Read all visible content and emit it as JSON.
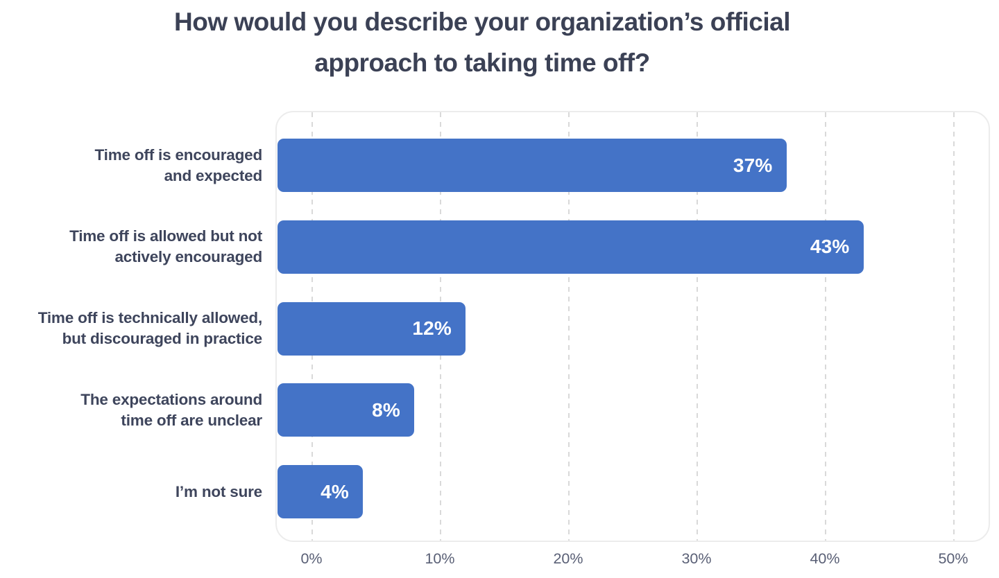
{
  "title": {
    "full": "How would you describe your organization’s official approach to taking time off?",
    "lines": [
      "How would you describe your organization’s official",
      "approach to taking time off?"
    ]
  },
  "chart_data": {
    "type": "bar",
    "orientation": "horizontal",
    "title": "How would you describe your organization’s official approach to taking time off?",
    "categories": [
      "Time off is encouraged and expected",
      "Time off is allowed but not actively encouraged",
      "Time off is technically allowed, but discouraged in practice",
      "The expectations around time off are unclear",
      "I’m not sure"
    ],
    "category_lines": [
      [
        "Time off is encouraged",
        "and expected"
      ],
      [
        "Time off is allowed but not",
        "actively encouraged"
      ],
      [
        "Time off is technically allowed,",
        "but discouraged in practice"
      ],
      [
        "The expectations around",
        "time off are unclear"
      ],
      [
        "I’m not sure"
      ]
    ],
    "values": [
      37,
      43,
      12,
      8,
      4
    ],
    "value_labels": [
      "37%",
      "43%",
      "12%",
      "8%",
      "4%"
    ],
    "x_tick_labels": [
      "0%",
      "10%",
      "20%",
      "30%",
      "40%",
      "50%"
    ],
    "x_axis_range": [
      0,
      50
    ],
    "unit": "percent",
    "grid": "vertical-dashed",
    "legend": "none",
    "colors": {
      "bar": "#4473C7",
      "value_label": "#FFFFFF",
      "title_text": "#3B4155",
      "category_text": "#3E455C",
      "tick_text": "#595F75",
      "gridline": "#D9D9D9",
      "plot_border": "#ECECEC",
      "background": "#FFFFFF"
    }
  }
}
